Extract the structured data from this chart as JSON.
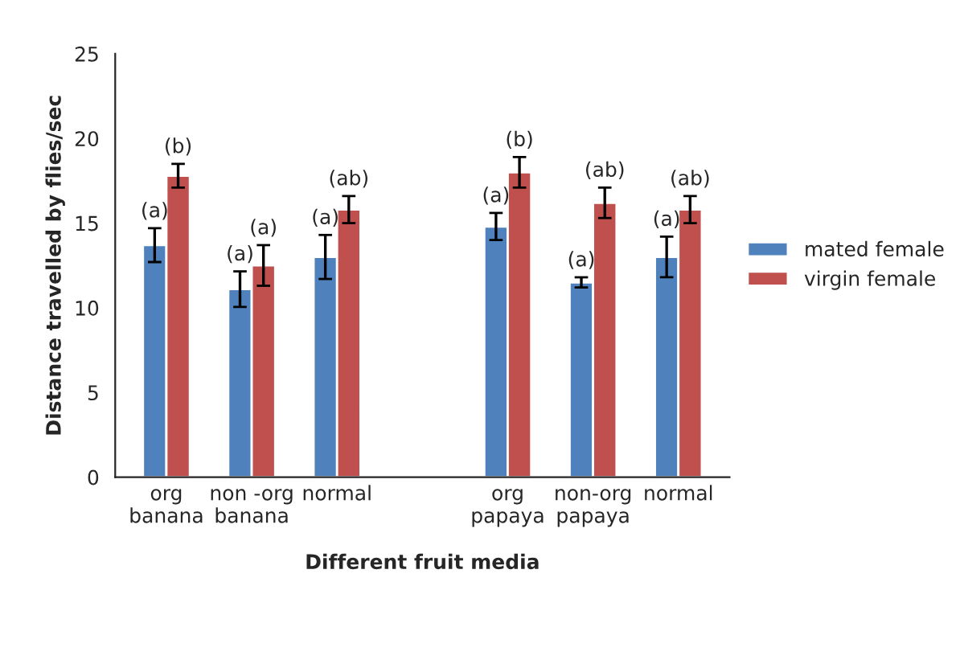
{
  "chart_data": {
    "type": "bar",
    "xlabel": "Different fruit media",
    "ylabel": "Distance travelled by flies/sec",
    "categories": [
      "org\nbanana",
      "non -org\nbanana",
      "normal",
      null,
      "org\npapaya",
      "non-org\npapaya",
      "normal"
    ],
    "series": [
      {
        "name": "mated female",
        "color": "#4f81bd",
        "values": [
          13.7,
          11.1,
          13.0,
          null,
          14.8,
          11.5,
          13.0
        ],
        "errors": [
          1.0,
          1.05,
          1.3,
          null,
          0.8,
          0.3,
          1.2
        ],
        "value_labels": [
          "(a)",
          "(a)",
          "(a)",
          null,
          "(a)",
          "(a)",
          "(a)"
        ]
      },
      {
        "name": "virgin female",
        "color": "#c0504d",
        "values": [
          17.8,
          12.5,
          15.8,
          null,
          18.0,
          16.2,
          15.8
        ],
        "errors": [
          0.7,
          1.2,
          0.8,
          null,
          0.9,
          0.9,
          0.8
        ],
        "value_labels": [
          "(b)",
          "(a)",
          "(ab)",
          null,
          "(b)",
          "(ab)",
          "(ab)"
        ]
      }
    ],
    "ylim": [
      0,
      25
    ],
    "yticks": [
      0,
      5,
      10,
      15,
      20,
      25
    ],
    "grid": false,
    "legend": "right"
  }
}
